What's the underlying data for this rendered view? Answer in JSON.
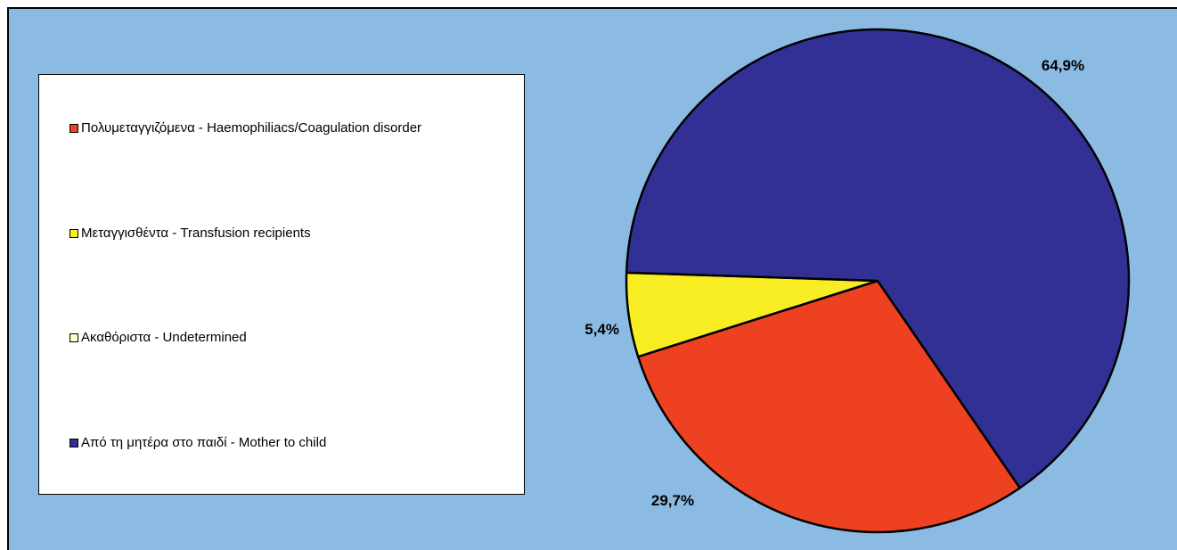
{
  "colors": {
    "background": "#8bbbe3"
  },
  "chart_data": {
    "type": "pie",
    "categories": [
      "Πολυμεταγγιζόμενα - Haemophiliacs/Coagulation disorder",
      "Μεταγγισθέντα - Transfusion recipients",
      "Ακαθόριστα - Undetermined",
      "Από τη μητέρα στο παιδί - Mother to child"
    ],
    "values": [
      29.7,
      5.4,
      0,
      64.9
    ],
    "labels": [
      "29,7%",
      "5,4%",
      "",
      "64,9%"
    ],
    "colors": [
      "#ee4122",
      "#f8ec22",
      "#ffffc8",
      "#333095"
    ],
    "legend_position": "left"
  }
}
